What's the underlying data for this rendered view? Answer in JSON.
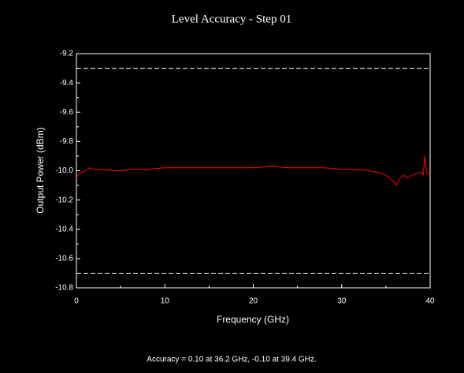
{
  "chart_data": {
    "type": "line",
    "title": "Level Accuracy - Step 01",
    "xlabel": "Frequency (GHz)",
    "ylabel": "Output Power (dBm)",
    "annotation": "Accuracy = 0.10 at 36.2 GHz, -0.10 at 39.4 GHz.",
    "xlim": [
      0,
      40
    ],
    "xticks": [
      0,
      10,
      20,
      30,
      40
    ],
    "ylim": [
      -10.8,
      -9.2
    ],
    "yticks": [
      -10.8,
      -10.6,
      -10.4,
      -10.2,
      {
        "value": -10,
        "label": "-10.0"
      },
      -9.8,
      -9.6,
      -9.4,
      -9.2
    ],
    "limit_lines": {
      "color": "#ffffff",
      "values": [
        -9.3,
        -10.7
      ]
    },
    "series": [
      {
        "name": "Output Power",
        "color": "#ff0000",
        "x": [
          0,
          0.3,
          0.7,
          1,
          1.5,
          2,
          3,
          4,
          5,
          6,
          8,
          10,
          12,
          15,
          18,
          20,
          22,
          24,
          26,
          28,
          30,
          31,
          32,
          33,
          34,
          35,
          35.6,
          36,
          36.2,
          36.6,
          37,
          37.5,
          38,
          38.5,
          39,
          39.2,
          39.4,
          39.6,
          40
        ],
        "values": [
          -10.05,
          -10.02,
          -10.01,
          -10.0,
          -9.98,
          -9.99,
          -9.99,
          -10.0,
          -10.0,
          -9.99,
          -9.99,
          -9.98,
          -9.98,
          -9.98,
          -9.98,
          -9.98,
          -9.97,
          -9.98,
          -9.98,
          -9.98,
          -9.99,
          -9.99,
          -9.99,
          -10.0,
          -10.01,
          -10.03,
          -10.06,
          -10.08,
          -10.1,
          -10.05,
          -10.03,
          -10.05,
          -10.03,
          -10.02,
          -10.01,
          -10.03,
          -9.9,
          -10.01,
          -10.03
        ]
      }
    ]
  }
}
